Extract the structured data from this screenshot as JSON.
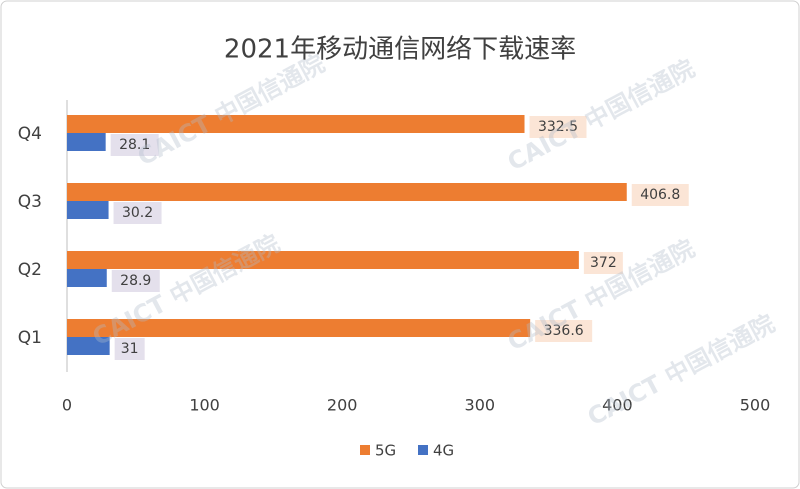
{
  "chart_data": {
    "type": "bar",
    "orientation": "horizontal",
    "title": "2021年移动通信网络下载速率",
    "categories": [
      "Q1",
      "Q2",
      "Q3",
      "Q4"
    ],
    "series": [
      {
        "name": "5G",
        "color": "#ed7d31",
        "values": [
          336.6,
          372,
          406.8,
          332.5
        ]
      },
      {
        "name": "4G",
        "color": "#4472c4",
        "values": [
          31,
          28.9,
          30.2,
          28.1
        ]
      }
    ],
    "xlim": [
      0,
      500
    ],
    "xticks": [
      0,
      100,
      200,
      300,
      400,
      500
    ],
    "grid": false,
    "legend": "bottom",
    "watermark": "CAICT 中国信通院"
  }
}
